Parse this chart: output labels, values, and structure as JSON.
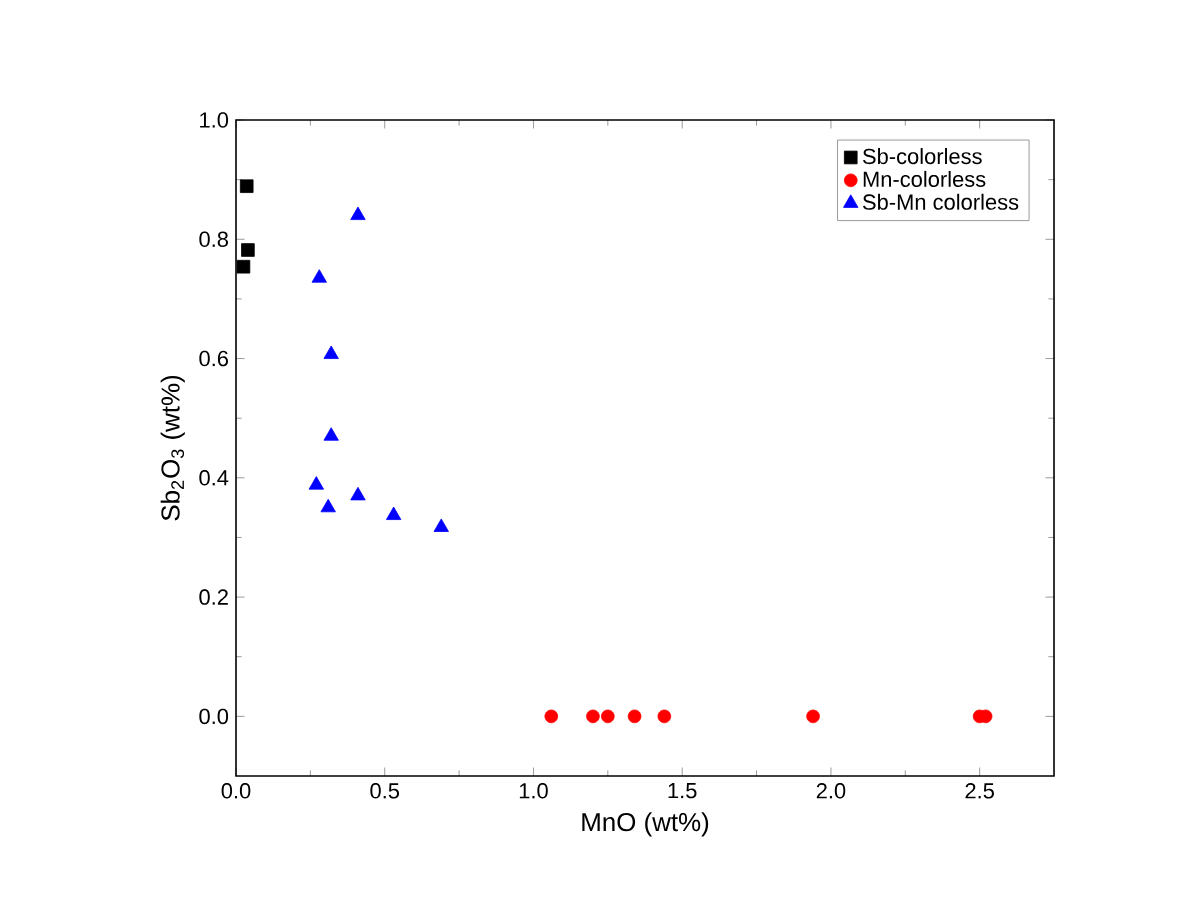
{
  "chart_data": {
    "type": "scatter",
    "xlabel": "MnO (wt%)",
    "ylabel": "Sb$_{2}$O$_{3}$ (wt%)",
    "xlim": [
      0,
      2.75
    ],
    "ylim": [
      -0.1,
      1.0
    ],
    "xticks": [
      {
        "value": 0,
        "label": "0.0"
      },
      {
        "value": 0.5,
        "label": "0.5"
      },
      {
        "value": 1,
        "label": "1.0"
      },
      {
        "value": 1.5,
        "label": "1.5"
      },
      {
        "value": 2,
        "label": "2.0"
      },
      {
        "value": 2.5,
        "label": "2.5"
      }
    ],
    "yticks": [
      {
        "value": 0,
        "label": "0.0"
      },
      {
        "value": 0.2,
        "label": "0.2"
      },
      {
        "value": 0.4,
        "label": "0.4"
      },
      {
        "value": 0.6,
        "label": "0.6"
      },
      {
        "value": 0.8,
        "label": "0.8"
      },
      {
        "value": 1,
        "label": "1.0"
      }
    ],
    "legend": "top right",
    "grid": false,
    "series": [
      {
        "name": "Sb-colorless",
        "color": "#000000",
        "marker": "square",
        "x": [
          0.036,
          0.04,
          0.025
        ],
        "values": [
          0.889,
          0.782,
          0.754
        ]
      },
      {
        "name": "Mn-colorless",
        "color": "#ff0000",
        "marker": "circle",
        "x": [
          1.06,
          1.2,
          1.25,
          1.34,
          1.44,
          1.94,
          2.5,
          2.52
        ],
        "values": [
          0,
          0,
          0,
          0,
          0,
          0,
          0,
          0
        ]
      },
      {
        "name": "Sb-Mn colorless",
        "color": "#0000ff",
        "marker": "triangle",
        "x": [
          0.28,
          0.41,
          0.32,
          0.32,
          0.27,
          0.31,
          0.41,
          0.53,
          0.69
        ],
        "values": [
          0.735,
          0.84,
          0.607,
          0.47,
          0.388,
          0.35,
          0.37,
          0.337,
          0.317
        ]
      }
    ]
  }
}
